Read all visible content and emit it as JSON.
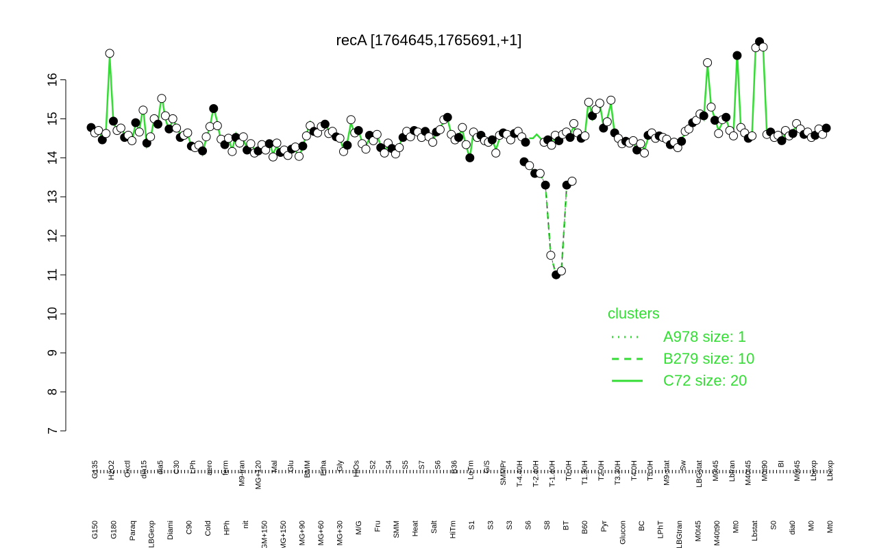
{
  "chart_data": {
    "type": "line",
    "title": "recA [1764645,1765691,+1]",
    "xlabel": "",
    "ylabel": "",
    "ylim": [
      7,
      16.5
    ],
    "yticks": [
      7,
      8,
      9,
      10,
      11,
      12,
      13,
      14,
      15,
      16
    ],
    "grid": false,
    "legend_position": "bottom-right",
    "legend_title": "clusters",
    "line_color": "#33dd33",
    "legend": [
      {
        "label": "A978 size: 1",
        "style": "dotted"
      },
      {
        "label": "B279 size: 10",
        "style": "dashed"
      },
      {
        "label": "C72 size: 20",
        "style": "solid"
      }
    ],
    "x_tick_labels_top": [
      "G135",
      "H2O2",
      "Oxctl",
      "dia15",
      "dia5",
      "C30",
      "LPh",
      "aero",
      "ferm",
      "M9-tran",
      "MG+120",
      "Mal",
      "Glu",
      "BMM",
      "Etha",
      "Gly",
      "HiOs",
      "S2",
      "S4",
      "S5",
      "S7",
      "S6",
      "B36",
      "LoTm",
      "G/S",
      "SMMPr",
      "T-4.40H",
      "T-2.40H",
      "T-1.40H",
      "T0.0H",
      "T1.30H",
      "T2.0H",
      "T3.30H",
      "T4.0H",
      "T5.0H",
      "M9-stat",
      "Sw",
      "LBGstat",
      "M0t45",
      "Lbtran",
      "M40t45",
      "M0t90",
      "BI",
      "M0t45",
      "Lbexp",
      "Lbexp"
    ],
    "x_tick_labels_bottom": [
      "G150",
      "G180",
      "Paraq",
      "LBGexp",
      "Diami",
      "C90",
      "Cold",
      "HPh",
      "nit",
      "GM+150",
      "MG+150",
      "MG+90",
      "MG+60",
      "MG+30",
      "M/G",
      "Fru",
      "SMM",
      "Heat",
      "Salt",
      "HiTm",
      "S1",
      "S3",
      "S3",
      "S6",
      "S8",
      "BT",
      "B60",
      "Pyr",
      "Glucon",
      "BC",
      "LPhT",
      "LBGtran",
      "M0t45",
      "M40t90",
      "Mt0",
      "Lbstat",
      "S0",
      "dia0",
      "M0",
      "Mt0"
    ],
    "series": [
      {
        "style": "solid",
        "values": [
          14.7,
          14.6,
          14.7,
          14.5,
          14.7,
          16.6,
          14.9,
          14.7,
          14.8,
          14.6,
          14.5,
          14.4,
          14.9,
          14.7,
          15.3,
          14.3,
          14.5,
          15.0,
          14.9,
          15.6,
          15.0,
          14.7,
          15.0,
          14.8,
          14.6,
          14.5,
          14.6,
          14.3,
          14.3,
          14.4,
          14.1,
          14.5,
          14.8,
          15.3,
          14.9,
          14.4,
          14.3,
          14.5,
          14.2,
          14.6,
          14.3,
          14.5,
          14.2,
          14.4,
          14.2,
          14.1,
          14.3,
          14.2,
          14.4,
          14.1,
          14.3,
          14.1,
          14.2,
          14.1,
          14.3,
          14.2,
          14.0,
          14.3,
          14.6,
          14.9,
          14.6,
          14.6,
          14.8,
          14.9,
          14.7,
          14.6,
          14.5,
          14.5,
          14.2,
          14.4,
          14.9,
          14.6,
          14.7,
          14.4,
          14.3,
          14.5,
          14.4,
          14.6,
          14.3,
          14.2,
          14.3,
          14.2,
          14.1,
          14.3,
          14.6,
          14.6,
          14.5,
          14.7,
          14.7,
          14.6,
          14.6,
          14.5,
          14.4,
          14.7,
          14.8,
          14.9,
          15.0,
          14.6,
          14.5,
          14.6,
          14.7,
          14.3,
          14.0,
          14.7,
          14.6,
          14.5,
          14.4,
          14.4,
          14.5,
          14.2,
          14.5,
          14.6,
          14.6,
          14.5,
          14.7,
          14.6,
          14.5,
          14.4,
          14.5,
          14.5,
          14.6,
          14.5,
          14.4,
          14.5,
          14.4,
          14.5,
          14.4,
          14.6,
          14.7,
          14.6,
          14.8,
          14.6,
          14.5,
          14.6,
          15.5,
          15.0,
          15.2,
          15.4,
          14.8,
          15.0,
          15.4,
          14.6,
          14.5,
          14.4,
          14.5,
          14.3,
          14.4,
          14.2,
          14.4,
          14.2,
          14.5,
          14.6,
          14.5,
          14.6,
          14.6,
          14.4,
          14.3,
          14.4,
          14.3,
          14.5,
          14.6,
          14.7,
          14.9,
          15.0,
          15.2,
          15.0,
          16.4,
          15.3,
          15.0,
          14.7,
          14.9,
          15.0,
          14.7,
          14.6,
          16.7,
          14.7,
          14.6,
          14.5,
          14.6,
          16.9,
          16.9,
          16.8,
          14.6,
          14.7,
          14.6,
          14.5,
          14.4,
          14.7,
          14.6,
          14.7,
          14.8,
          14.7,
          14.6,
          14.7,
          14.6,
          14.5,
          14.7,
          14.6,
          14.8
        ]
      },
      {
        "style": "dashed",
        "values": [
          13.9,
          13.8,
          13.6,
          13.6,
          13.3,
          11.5,
          11.0,
          11.1,
          13.3,
          13.4
        ]
      }
    ]
  }
}
